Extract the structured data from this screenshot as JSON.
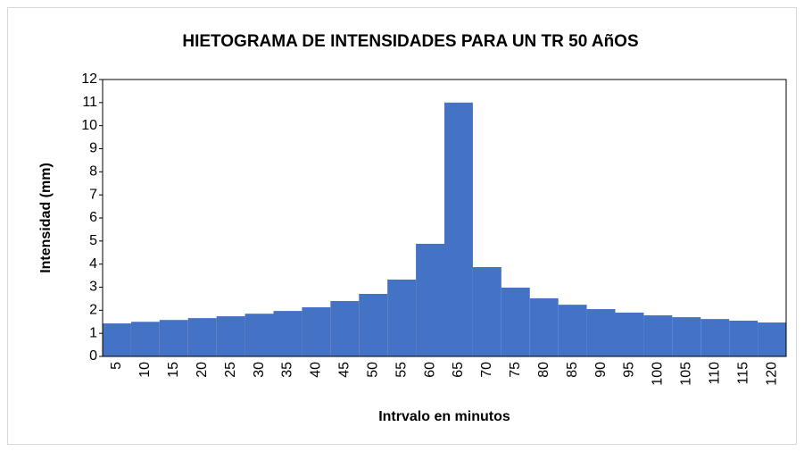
{
  "chart_data": {
    "type": "bar",
    "title": "HIETOGRAMA DE INTENSIDADES PARA UN TR 50 AñOS",
    "x_label": "Intrvalo en minutos",
    "y_label": "Intensidad (mm)",
    "categories": [
      "5",
      "10",
      "15",
      "20",
      "25",
      "30",
      "35",
      "40",
      "45",
      "50",
      "55",
      "60",
      "65",
      "70",
      "75",
      "80",
      "85",
      "90",
      "95",
      "100",
      "105",
      "110",
      "115",
      "120"
    ],
    "values": [
      1.43,
      1.5,
      1.58,
      1.66,
      1.74,
      1.85,
      1.97,
      2.13,
      2.4,
      2.71,
      3.33,
      4.88,
      11,
      3.87,
      2.98,
      2.52,
      2.24,
      2.05,
      1.9,
      1.78,
      1.7,
      1.62,
      1.55,
      1.47
    ],
    "color": "#4472c4",
    "ylim": [
      0,
      12
    ],
    "yticks": [
      0,
      1,
      2,
      3,
      4,
      5,
      6,
      7,
      8,
      9,
      10,
      11,
      12
    ],
    "grid": false
  }
}
